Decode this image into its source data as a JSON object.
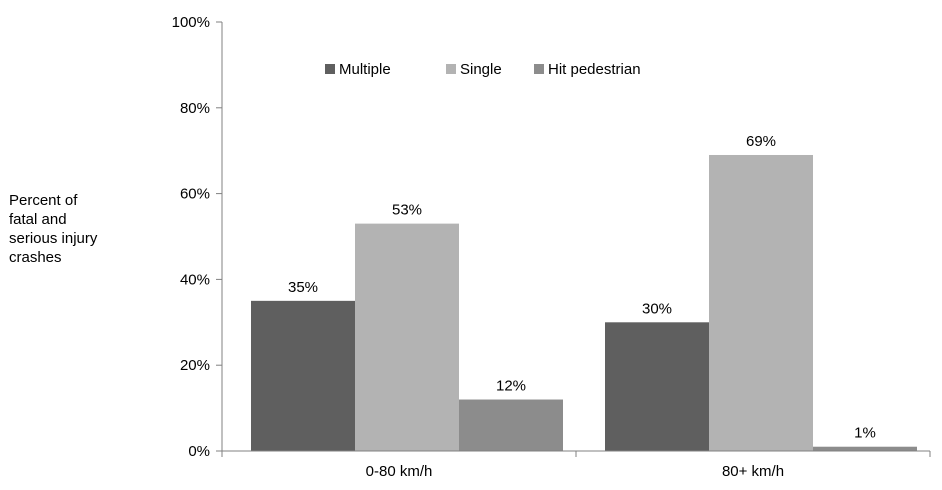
{
  "chart_data": {
    "type": "bar",
    "categories": [
      "0-80 km/h",
      "80+ km/h"
    ],
    "series": [
      {
        "name": "Multiple",
        "values": [
          35,
          30
        ],
        "labels": [
          "35%",
          "30%"
        ],
        "color": "#5f5f5f"
      },
      {
        "name": "Single",
        "values": [
          53,
          69
        ],
        "labels": [
          "53%",
          "69%"
        ],
        "color": "#b3b3b3"
      },
      {
        "name": "Hit pedestrian",
        "values": [
          12,
          1
        ],
        "labels": [
          "12%",
          "1%"
        ],
        "color": "#8c8c8c"
      }
    ],
    "ylabel_lines": [
      "Percent of",
      "fatal and",
      "serious injury",
      "crashes"
    ],
    "ylim": [
      0,
      100
    ],
    "yticks": [
      0,
      20,
      40,
      60,
      80,
      100
    ],
    "ytick_labels": [
      "0%",
      "20%",
      "40%",
      "60%",
      "80%",
      "100%"
    ],
    "legend_position": "top-center",
    "grid": false
  }
}
